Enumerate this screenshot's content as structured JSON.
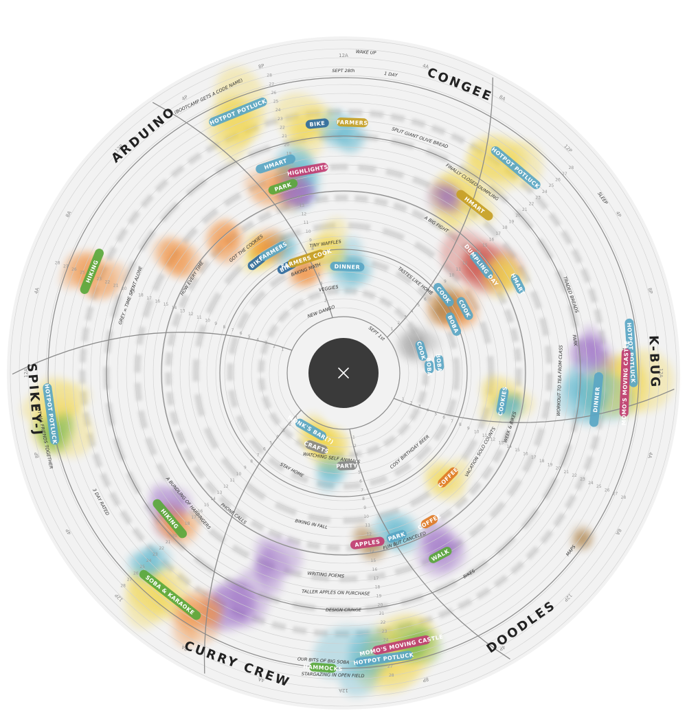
{
  "groups": [
    {
      "name": "ARDUINO",
      "sub": "(BOOTCAMP GETS A CODE NAME)",
      "angle": -40,
      "color": "#222"
    },
    {
      "name": "CONGEE",
      "angle": 22,
      "color": "#222"
    },
    {
      "name": "K-BUG",
      "angle": 88,
      "color": "#222"
    },
    {
      "name": "DOODLES",
      "angle": 145,
      "color": "#222"
    },
    {
      "name": "CURRY CREW",
      "angle": 200,
      "color": "#222"
    },
    {
      "name": "SPIKEY-J",
      "angle": 265,
      "color": "#222"
    }
  ],
  "pills": [
    {
      "label": "HOTPOT POTLUCK",
      "angle": -22,
      "r": 410,
      "color": "#5aa6c4",
      "w": 90
    },
    {
      "label": "BIKE",
      "angle": -6,
      "r": 365,
      "color": "#2f6a9c",
      "w": 34
    },
    {
      "label": "FARMERS",
      "angle": 2,
      "r": 365,
      "color": "#c79f24",
      "w": 46
    },
    {
      "label": "HMART",
      "angle": -18,
      "r": 320,
      "color": "#5aa6c4",
      "w": 60
    },
    {
      "label": "HIGHLIGHTS",
      "angle": -10,
      "r": 300,
      "color": "#c13e72",
      "w": 60
    },
    {
      "label": "PARK",
      "angle": -18,
      "r": 285,
      "color": "#5aa83c",
      "w": 44
    },
    {
      "label": "BIKE",
      "angle": -38,
      "r": 205,
      "color": "#2f6a9c",
      "w": 30
    },
    {
      "label": "FARMERS",
      "angle": -30,
      "r": 205,
      "color": "#5aa6c4",
      "w": 44
    },
    {
      "label": "BIKE",
      "angle": -28,
      "r": 175,
      "color": "#2f6a9c",
      "w": 30
    },
    {
      "label": "FARMERS COOK",
      "angle": -18,
      "r": 175,
      "color": "#c79f24",
      "w": 56
    },
    {
      "label": "DINNER",
      "angle": 2,
      "r": 155,
      "color": "#5aa6c4",
      "w": 50
    },
    {
      "label": "HOTPOT POTLUCK",
      "angle": 40,
      "r": 390,
      "color": "#5aa6c4",
      "w": 90
    },
    {
      "label": "HMART",
      "angle": 38,
      "r": 310,
      "color": "#c79f24",
      "w": 64
    },
    {
      "label": "DUMPLING DAY",
      "angle": 52,
      "r": 255,
      "color": "#5aa6c4",
      "w": 46
    },
    {
      "label": "HMART",
      "angle": 63,
      "r": 285,
      "color": "#5aa6c4",
      "w": 30
    },
    {
      "label": "COOK",
      "angle": 52,
      "r": 185,
      "color": "#5aa6c4",
      "w": 40
    },
    {
      "label": "COOK",
      "angle": 62,
      "r": 200,
      "color": "#5aa6c4",
      "w": 36
    },
    {
      "label": "BOBA",
      "angle": 66,
      "r": 175,
      "color": "#5aa6c4",
      "w": 36
    },
    {
      "label": "COOK",
      "angle": 74,
      "r": 118,
      "color": "#5aa6c4",
      "w": 30
    },
    {
      "label": "BOBA",
      "angle": 84,
      "r": 140,
      "color": "#5aa6c4",
      "w": 24
    },
    {
      "label": "BOBA",
      "angle": 86,
      "r": 125,
      "color": "#5aa6c4",
      "w": 20
    },
    {
      "label": "HOTPOT POTLUCK",
      "angle": 86,
      "r": 420,
      "color": "#5aa6c4",
      "w": 100
    },
    {
      "label": "DINNER",
      "angle": 96,
      "r": 370,
      "color": "#5aa6c4",
      "w": 80
    },
    {
      "label": "MOMO'S MOVING CASTLE",
      "angle": 92,
      "r": 410,
      "color": "#c13e72",
      "w": 100
    },
    {
      "label": "COOKIES",
      "angle": 100,
      "r": 235,
      "color": "#5aa6c4",
      "w": 40
    },
    {
      "label": "COFFEE",
      "angle": 135,
      "r": 215,
      "color": "#e07b26",
      "w": 36
    },
    {
      "label": "APPLES",
      "angle": 172,
      "r": 250,
      "color": "#c13e72",
      "w": 50
    },
    {
      "label": "PARK",
      "angle": 162,
      "r": 250,
      "color": "#5aa6c4",
      "w": 30
    },
    {
      "label": "WALK",
      "angle": 152,
      "r": 300,
      "color": "#5aa83c",
      "w": 36
    },
    {
      "label": "MOMO'S MOVING CASTLE",
      "angle": 168,
      "r": 405,
      "color": "#c13e72",
      "w": 86
    },
    {
      "label": "HOTPOT POTLUCK",
      "angle": 172,
      "r": 420,
      "color": "#5aa6c4",
      "w": 86
    },
    {
      "label": "HAMMOCKS",
      "angle": 184,
      "r": 430,
      "color": "#5aa83c",
      "w": 40
    },
    {
      "label": "PARTY",
      "angle": 178,
      "r": 135,
      "color": "#888888",
      "w": 30
    },
    {
      "label": "CRAFTS",
      "angle": 200,
      "r": 115,
      "color": "#888888",
      "w": 34
    },
    {
      "label": "MONK'S BAR(?)",
      "angle": 210,
      "r": 95,
      "color": "#5aa6c4",
      "w": 50
    },
    {
      "label": "COFFEE",
      "angle": 150,
      "r": 250,
      "color": "#e07b26",
      "w": 26
    },
    {
      "label": "HIKING",
      "angle": 230,
      "r": 330,
      "color": "#5aa83c",
      "w": 70
    },
    {
      "label": "SOBA & KARAOKE",
      "angle": 218,
      "r": 410,
      "color": "#5aa83c",
      "w": 110
    },
    {
      "label": "HOTPOT POTLUCK",
      "angle": 262,
      "r": 430,
      "color": "#5aa6c4",
      "w": 90
    },
    {
      "label": "HIKING",
      "angle": 292,
      "r": 395,
      "color": "#5aa83c",
      "w": 70
    }
  ],
  "notes": [
    {
      "text": "SEPT 28th",
      "angle": 0,
      "r": 440
    },
    {
      "text": "1 DAY",
      "angle": 9,
      "r": 440
    },
    {
      "text": "WAKE UP",
      "angle": 4,
      "r": 468
    },
    {
      "text": "SPLIT GIANT OLIVE BREAD",
      "angle": 18,
      "r": 360
    },
    {
      "text": "FINALLY CLOSED DUMPLING",
      "angle": 34,
      "r": 335
    },
    {
      "text": "A BIG FIGHT",
      "angle": 32,
      "r": 255
    },
    {
      "text": "SLEEP",
      "angle": 56,
      "r": 455
    },
    {
      "text": "TRADED BREADS",
      "angle": 71,
      "r": 350
    },
    {
      "text": "TASTES LIKE HOME",
      "angle": 38,
      "r": 170
    },
    {
      "text": "TINY WAFFLES",
      "angle": -8,
      "r": 190
    },
    {
      "text": "BAKING MATH",
      "angle": -20,
      "r": 160
    },
    {
      "text": "VEGGIES",
      "angle": -10,
      "r": 125
    },
    {
      "text": "NEW DANGO",
      "angle": -20,
      "r": 95
    },
    {
      "text": "SEPT 1st",
      "angle": 40,
      "r": 75
    },
    {
      "text": "GREY = TIME SPENT ALONE",
      "angle": -70,
      "r": 330
    },
    {
      "text": "HOW EVERY TIME",
      "angle": -58,
      "r": 260
    },
    {
      "text": "GOT THE COOKIES",
      "angle": -38,
      "r": 230
    },
    {
      "text": "GOT ALL FRIENDS TOGETHER",
      "angle": -102,
      "r": 445
    },
    {
      "text": "3 DAY RATED",
      "angle": -118,
      "r": 400
    },
    {
      "text": "STAY HOME",
      "angle": -152,
      "r": 160
    },
    {
      "text": "WATCHING SELF ANIMALS",
      "angle": -172,
      "r": 125
    },
    {
      "text": "PHONE CALLS",
      "angle": -142,
      "r": 260
    },
    {
      "text": "BIKING IN FALL",
      "angle": -168,
      "r": 225
    },
    {
      "text": "A BUNDLING OF HARBINGERS",
      "angle": -130,
      "r": 295
    },
    {
      "text": "WRITING POEMS",
      "angle": -175,
      "r": 295
    },
    {
      "text": "TALLER APPLES ON PURCHASE",
      "angle": -178,
      "r": 320
    },
    {
      "text": "DESIGN CRINGE",
      "angle": -180,
      "r": 345
    },
    {
      "text": "OUR BITS OF BIG SOBA",
      "angle": -176,
      "r": 420,
      "color": "#e07b26"
    },
    {
      "text": "STARGAZING IN OPEN FIELD",
      "angle": -178,
      "r": 440
    },
    {
      "text": "FUN BUT CANCELED",
      "angle": 160,
      "r": 260
    },
    {
      "text": "VACATION SOLO COUNTS",
      "angle": 120,
      "r": 230
    },
    {
      "text": "BIKES",
      "angle": 148,
      "r": 345
    },
    {
      "text": "MAPS",
      "angle": 128,
      "r": 420
    },
    {
      "text": "WEEK & BIKES",
      "angle": 108,
      "r": 255
    },
    {
      "text": "WORKOUT TO TEA FROM CLASS",
      "angle": 92,
      "r": 315
    },
    {
      "text": "FILM",
      "angle": 86,
      "r": 410
    },
    {
      "text": "PARK",
      "angle": 82,
      "r": 340
    },
    {
      "text": "COSY BIRTHDAY BEER",
      "angle": 140,
      "r": 150
    }
  ],
  "hour_labels": [
    "12A",
    "4A",
    "8A",
    "12P",
    "4P",
    "8P"
  ],
  "close_icon": "close-icon",
  "colors": {
    "background": "#f2f2f2",
    "ring_line": "#8a8a8a",
    "hub": "#3a3a3a",
    "grey_alone": "#bdbdbd",
    "yellow": "#f1d54a",
    "blue": "#56b4cc",
    "orange": "#f08a34",
    "red": "#c9473c",
    "purple": "#9a6cc4",
    "green": "#6ab34a",
    "pink": "#e05285",
    "brown": "#a87a3e"
  }
}
